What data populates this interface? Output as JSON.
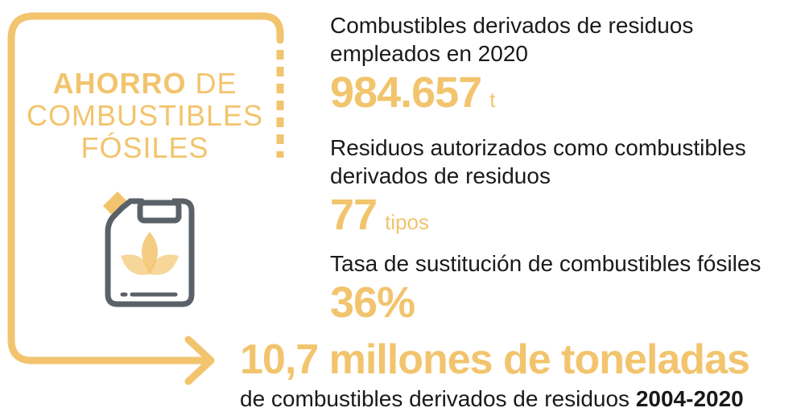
{
  "title": {
    "strong": "AHORRO",
    "light_1": "DE",
    "line2": "COMBUSTIBLES",
    "line3": "FÓSILES"
  },
  "icon": "fuel-canister-leaf-icon",
  "colors": {
    "accent": "#f2c46d",
    "icon_stroke": "#5b6168",
    "text": "#1a1a1a"
  },
  "stats": [
    {
      "label": "Combustibles derivados de residuos empleados en 2020",
      "value": "984.657",
      "unit": "t"
    },
    {
      "label": "Residuos autorizados como combustibles derivados de residuos",
      "value": "77",
      "unit": "tipos"
    },
    {
      "label": "Tasa de sustitución de combustibles fósiles",
      "value": "36%",
      "unit": ""
    }
  ],
  "total": {
    "headline": "10,7 millones de toneladas",
    "subtitle": "de combustibles derivados de residuos",
    "years": "2004-2020"
  }
}
